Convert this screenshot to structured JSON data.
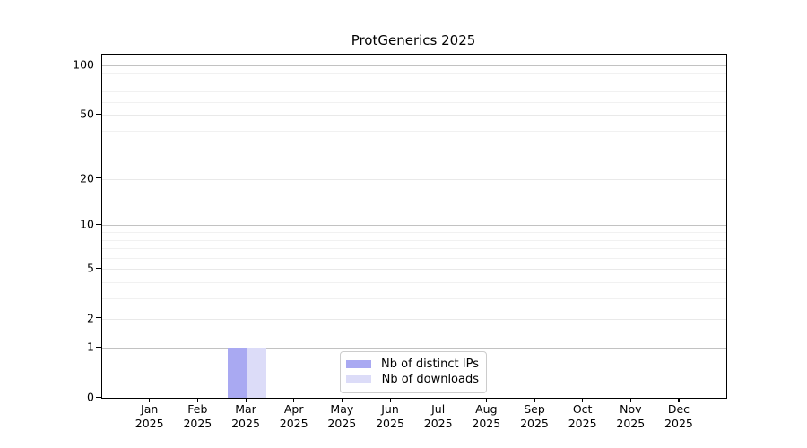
{
  "chart_data": {
    "type": "bar",
    "title": "ProtGenerics 2025",
    "categories": [
      "Jan 2025",
      "Feb 2025",
      "Mar 2025",
      "Apr 2025",
      "May 2025",
      "Jun 2025",
      "Jul 2025",
      "Aug 2025",
      "Sep 2025",
      "Oct 2025",
      "Nov 2025",
      "Dec 2025"
    ],
    "series": [
      {
        "name": "Nb of distinct IPs",
        "color": "#a9a9f2",
        "values": [
          0,
          0,
          1,
          0,
          0,
          0,
          0,
          0,
          0,
          0,
          0,
          0
        ]
      },
      {
        "name": "Nb of downloads",
        "color": "#dcdcf8",
        "values": [
          0,
          0,
          1,
          0,
          0,
          0,
          0,
          0,
          0,
          0,
          0,
          0
        ]
      }
    ],
    "xlabel": "",
    "ylabel": "",
    "yscale": "log1p",
    "ylim": [
      0,
      115
    ],
    "yticks": [
      0,
      1,
      2,
      5,
      10,
      20,
      50,
      100
    ],
    "power_gridlines": [
      1,
      10,
      100
    ],
    "minor_gridlines": [
      3,
      4,
      6,
      7,
      8,
      9,
      30,
      40,
      60,
      70,
      80,
      90
    ],
    "grid": true,
    "legend_position": "bottom-center",
    "colors": {
      "power_gridline": "#c2c2c2",
      "labeled_gridline": "#e9e9e9",
      "minor_gridline": "#f1f1f1",
      "axis": "#000000",
      "background": "#ffffff"
    }
  }
}
